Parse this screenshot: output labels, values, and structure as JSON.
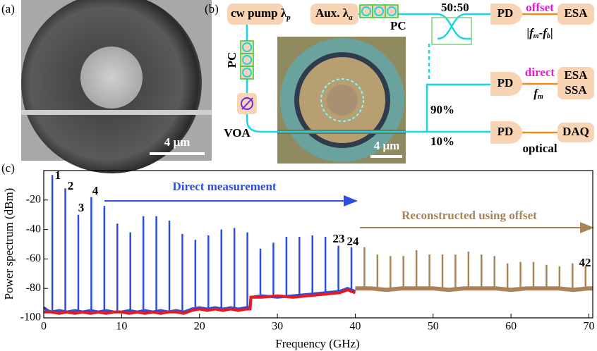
{
  "panel_a": {
    "label": "(a)",
    "scale_bar": "4 μm"
  },
  "panel_b": {
    "label": "(b)",
    "cw_pump": "cw pump λ",
    "cw_pump_sub": "p",
    "aux": "Aux. λ",
    "aux_sub": "a",
    "pc_top": "PC",
    "pc_left": "PC",
    "coupler": "50:50",
    "voa": "VOA",
    "pd_offset": "PD",
    "offset": "offset",
    "esa_offset": "ESA",
    "formula": [
      "|",
      "f",
      "m",
      "-",
      "f",
      "b",
      "|"
    ],
    "pd_direct": "PD",
    "direct": "direct",
    "esa_direct": "ESA",
    "ssa": "SSA",
    "fm": "f",
    "fm_sub": "m",
    "ratio_90": "90%",
    "ratio_10": "10%",
    "pd_optical": "PD",
    "optical": "optical",
    "daq": "DAQ",
    "scale_bar": "4 μm"
  },
  "chart_data": {
    "type": "spectrum",
    "panel_label": "(c)",
    "xlabel": "Frequency (GHz)",
    "ylabel": "Power spectrum (dBm)",
    "xlim": [
      0,
      70.5
    ],
    "ylim": [
      -100,
      0
    ],
    "xticks": [
      0,
      10,
      20,
      30,
      40,
      50,
      60,
      70
    ],
    "yticks": [
      -100,
      -80,
      -60,
      -40,
      -20
    ],
    "annotations": [
      "1",
      "2",
      "3",
      "4",
      "23",
      "24",
      "42"
    ],
    "direct_label": "Direct measurement",
    "reconstructed_label": "Reconstructed using offset",
    "noise": [
      {
        "color": "#2b4ee0",
        "x": [
          0,
          0.5,
          1,
          2,
          3,
          4,
          5,
          6,
          7,
          8,
          9,
          10,
          11,
          12,
          13,
          14,
          15,
          16,
          17,
          18,
          19,
          20,
          21,
          22,
          23,
          24,
          25,
          26,
          26.5,
          26.6,
          28,
          30,
          32,
          34,
          36,
          38,
          39,
          40
        ],
        "values": [
          -93,
          -95,
          -96,
          -95,
          -96,
          -95,
          -96,
          -95,
          -96,
          -95,
          -96,
          -96,
          -95,
          -96,
          -95,
          -96,
          -95,
          -96,
          -95,
          -96,
          -94,
          -93,
          -94,
          -93,
          -94,
          -93,
          -94,
          -93,
          -93,
          -86,
          -85,
          -86,
          -85,
          -84,
          -83,
          -82,
          -80,
          -82
        ]
      },
      {
        "color": "#a8845a",
        "x": [
          40,
          42,
          44,
          46,
          48,
          50,
          52,
          54,
          56,
          58,
          60,
          62,
          64,
          66,
          68,
          70,
          70.5
        ],
        "values": [
          -80,
          -80,
          -81,
          -80,
          -80,
          -80,
          -81,
          -80,
          -80,
          -80,
          -81,
          -80,
          -80,
          -80,
          -81,
          -80,
          -80
        ]
      },
      {
        "color": "#e8191f",
        "x": [
          0,
          1,
          2,
          3,
          4,
          5,
          6,
          7,
          8,
          9,
          10,
          11,
          12,
          13,
          14,
          15,
          16,
          17,
          18,
          19,
          20,
          21,
          22,
          23,
          24,
          25,
          26,
          26.5,
          26.6,
          28,
          30,
          32,
          34,
          36,
          38,
          39,
          40
        ],
        "values": [
          -96,
          -96,
          -97,
          -96,
          -97,
          -96,
          -97,
          -96,
          -97,
          -96,
          -96,
          -97,
          -96,
          -97,
          -96,
          -97,
          -96,
          -96,
          -97,
          -95,
          -94,
          -95,
          -94,
          -95,
          -94,
          -95,
          -94,
          -94,
          -86,
          -86,
          -85,
          -86,
          -85,
          -84,
          -83,
          -81,
          -83
        ]
      }
    ],
    "peaks": [
      {
        "color": "#2b4ee0",
        "x": [
          1.1,
          2.77,
          4.44,
          6.11,
          7.78,
          9.45,
          11.12,
          12.79,
          14.46,
          16.13,
          17.8,
          19.47,
          21.14,
          22.81,
          24.48,
          26.15,
          27.82,
          29.49,
          31.16,
          32.83,
          34.5,
          36.17,
          37.84,
          39.51
        ],
        "values": [
          -3,
          -12,
          -30,
          -18,
          -24,
          -36,
          -42,
          -31,
          -31,
          -34,
          -43,
          -47,
          -44,
          -40,
          -39,
          -42,
          -53,
          -49,
          -45,
          -45,
          -44,
          -45,
          -51,
          -52
        ]
      },
      {
        "color": "#a8845a",
        "x": [
          41.18,
          42.85,
          44.52,
          46.19,
          47.86,
          49.53,
          51.2,
          52.87,
          54.54,
          56.21,
          57.88,
          59.55,
          61.22,
          62.89,
          64.56,
          66.23,
          67.9,
          69.57
        ],
        "values": [
          -52,
          -57,
          -58,
          -58,
          -54,
          -57,
          -57,
          -57,
          -55,
          -57,
          -58,
          -63,
          -62,
          -62,
          -64,
          -65,
          -63,
          -65
        ]
      }
    ]
  }
}
